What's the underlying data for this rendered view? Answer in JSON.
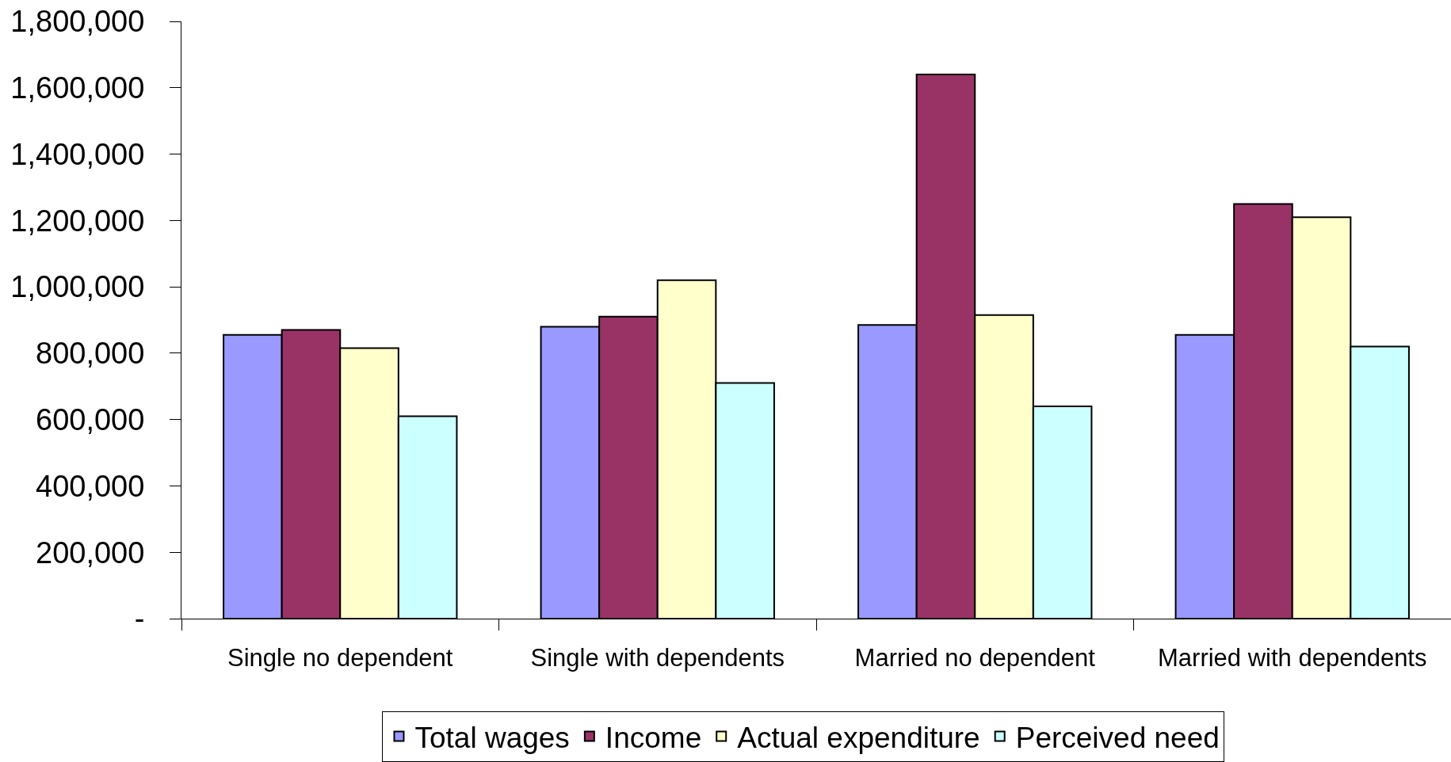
{
  "chart_data": {
    "type": "bar",
    "categories": [
      "Single no dependent",
      "Single with dependents",
      "Married no dependent",
      "Married with dependents"
    ],
    "series": [
      {
        "name": "Total wages",
        "color": "#9999ff",
        "values": [
          855000,
          880000,
          885000,
          855000
        ]
      },
      {
        "name": "Income",
        "color": "#993366",
        "values": [
          870000,
          910000,
          1640000,
          1250000
        ]
      },
      {
        "name": "Actual expenditure",
        "color": "#ffffcc",
        "values": [
          815000,
          1020000,
          915000,
          1210000
        ]
      },
      {
        "name": "Perceived need",
        "color": "#ccffff",
        "values": [
          610000,
          710000,
          640000,
          820000
        ]
      }
    ],
    "ylim": [
      0,
      1800000
    ],
    "yticks": [
      {
        "value": 0,
        "label": "-"
      },
      {
        "value": 200000,
        "label": "200,000"
      },
      {
        "value": 400000,
        "label": "400,000"
      },
      {
        "value": 600000,
        "label": "600,000"
      },
      {
        "value": 800000,
        "label": "800,000"
      },
      {
        "value": 1000000,
        "label": "1,000,000"
      },
      {
        "value": 1200000,
        "label": "1,200,000"
      },
      {
        "value": 1400000,
        "label": "1,400,000"
      },
      {
        "value": 1600000,
        "label": "1,600,000"
      },
      {
        "value": 1800000,
        "label": "1,800,000"
      }
    ],
    "grid": false,
    "legend": "bottom"
  }
}
